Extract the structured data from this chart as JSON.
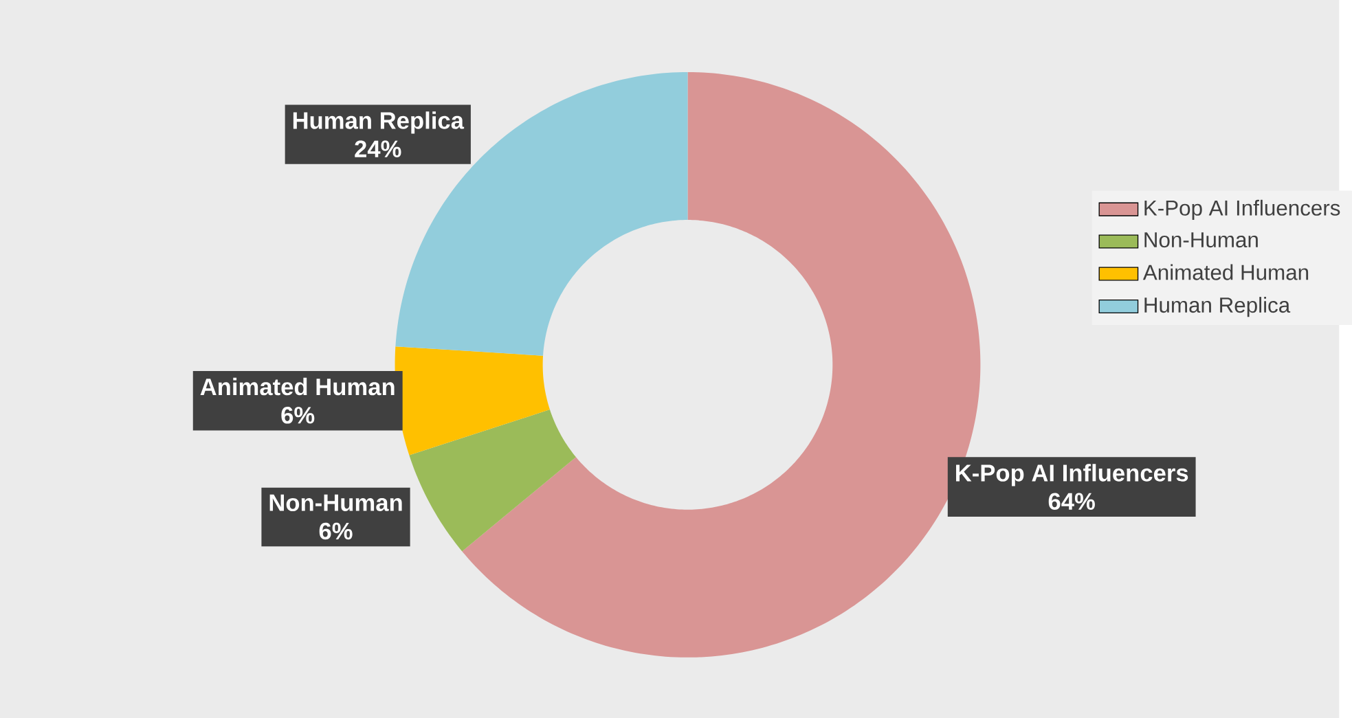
{
  "chart_data": {
    "type": "donut",
    "categories": [
      "K-Pop AI Influencers",
      "Non-Human",
      "Animated Human",
      "Human Replica"
    ],
    "values": [
      64,
      6,
      6,
      24
    ],
    "colors": [
      "#d99594",
      "#9bbb59",
      "#ffc000",
      "#92cddc"
    ],
    "data_labels": true,
    "value_labels": [
      "64%",
      "6%",
      "6%",
      "24%"
    ],
    "legend": "right"
  }
}
